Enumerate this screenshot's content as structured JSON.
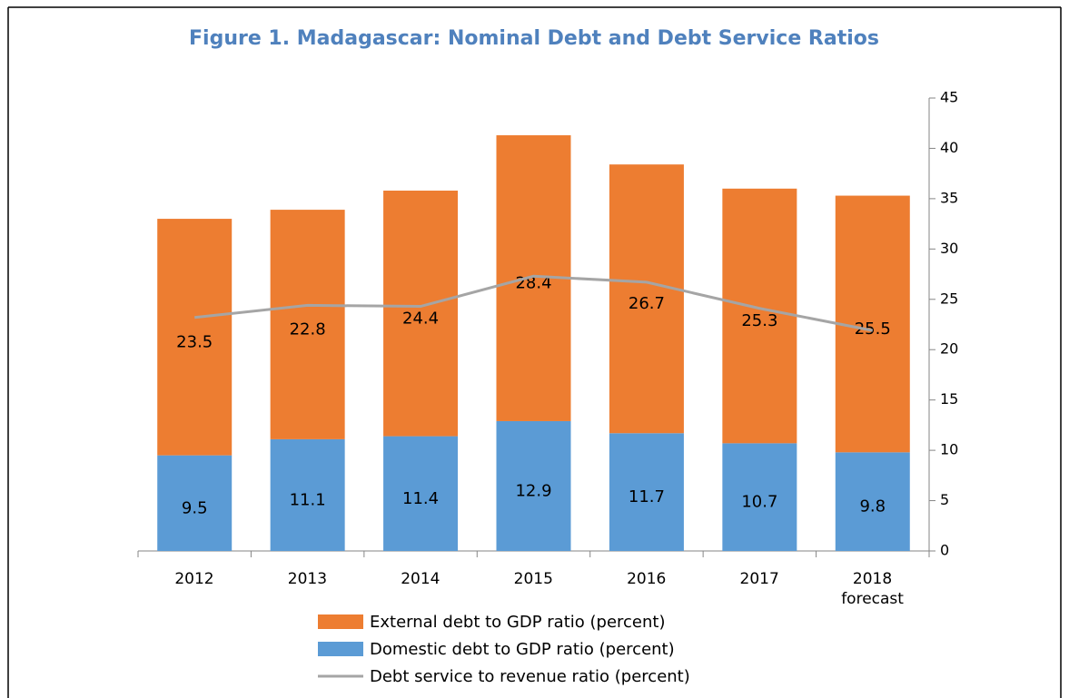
{
  "chart_data": {
    "type": "bar",
    "stacked": true,
    "title": "Figure 1. Madagascar: Nominal Debt and Debt Service Ratios",
    "categories": [
      "2012",
      "2013",
      "2014",
      "2015",
      "2016",
      "2017",
      "2018\nforecast"
    ],
    "series": [
      {
        "name": "External debt to GDP ratio (percent)",
        "type": "bar",
        "color": "#ed7d31",
        "values": [
          23.5,
          22.8,
          24.4,
          28.4,
          26.7,
          25.3,
          25.5
        ],
        "show_values": true
      },
      {
        "name": "Domestic debt to GDP ratio (percent)",
        "type": "bar",
        "color": "#5b9bd5",
        "values": [
          9.5,
          11.1,
          11.4,
          12.9,
          11.7,
          10.7,
          9.8
        ],
        "show_values": true
      },
      {
        "name": "Debt service to revenue ratio (percent)",
        "type": "line",
        "color": "#a5a5a5",
        "values": [
          23.2,
          24.4,
          24.3,
          27.3,
          26.7,
          24.1,
          21.9
        ],
        "show_values": false
      }
    ],
    "ylim": [
      0,
      45
    ],
    "yticks": [
      0,
      5,
      10,
      15,
      20,
      25,
      30,
      35,
      40,
      45
    ],
    "y_axis_side": "right",
    "grid": false,
    "legend": "bottom"
  }
}
